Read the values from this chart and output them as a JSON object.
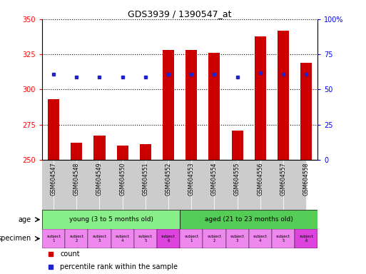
{
  "title": "GDS3939 / 1390547_at",
  "samples": [
    "GSM604547",
    "GSM604548",
    "GSM604549",
    "GSM604550",
    "GSM604551",
    "GSM604552",
    "GSM604553",
    "GSM604554",
    "GSM604555",
    "GSM604556",
    "GSM604557",
    "GSM604558"
  ],
  "count_values": [
    293,
    262,
    267,
    260,
    261,
    328,
    328,
    326,
    271,
    338,
    342,
    319
  ],
  "percentile_values": [
    61,
    59,
    59,
    59,
    59,
    61,
    61,
    61,
    59,
    62,
    61,
    61
  ],
  "ylim_left": [
    250,
    350
  ],
  "ylim_right": [
    0,
    100
  ],
  "yticks_left": [
    250,
    275,
    300,
    325,
    350
  ],
  "yticks_right": [
    0,
    25,
    50,
    75,
    100
  ],
  "bar_color": "#cc0000",
  "dot_color": "#2222cc",
  "age_young_label": "young (3 to 5 months old)",
  "age_aged_label": "aged (21 to 23 months old)",
  "age_young_color": "#88ee88",
  "age_aged_color": "#55cc55",
  "specimen_colors": [
    "#ee88ee",
    "#ee88ee",
    "#ee88ee",
    "#ee88ee",
    "#ee88ee",
    "#dd44dd",
    "#ee88ee",
    "#ee88ee",
    "#ee88ee",
    "#ee88ee",
    "#ee88ee",
    "#dd44dd"
  ],
  "specimen_labels": [
    "subject\n1",
    "subject\n2",
    "subject\n3",
    "subject\n4",
    "subject\n5",
    "subject\n6",
    "subject\n1",
    "subject\n2",
    "subject\n3",
    "subject\n4",
    "subject\n5",
    "subject\n6"
  ],
  "xticklabel_bg": "#cccccc",
  "legend_count_color": "#cc0000",
  "legend_dot_color": "#2222cc",
  "legend_count_label": "count",
  "legend_dot_label": "percentile rank within the sample"
}
